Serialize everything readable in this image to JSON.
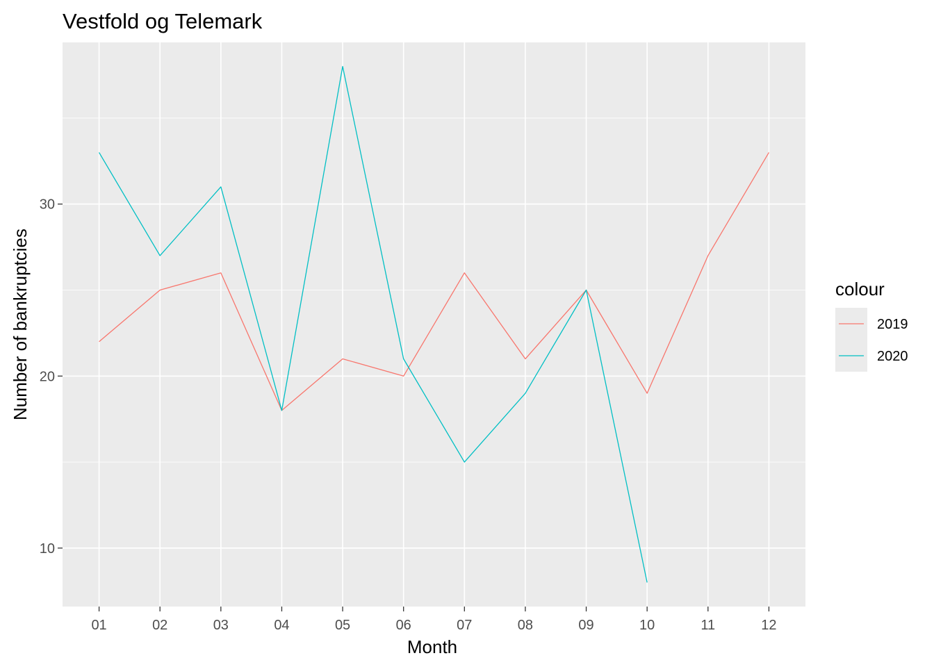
{
  "chart_data": {
    "type": "line",
    "title": "Vestfold og Telemark",
    "xlabel": "Month",
    "ylabel": "Number of bankruptcies",
    "categories": [
      "01",
      "02",
      "03",
      "04",
      "05",
      "06",
      "07",
      "08",
      "09",
      "10",
      "11",
      "12"
    ],
    "ylim": [
      6.6,
      39.4
    ],
    "yticks": [
      10,
      20,
      30
    ],
    "grid": true,
    "legend_title": "colour",
    "legend_position": "right",
    "series": [
      {
        "name": "2019",
        "color": "#F8766D",
        "values": [
          22,
          25,
          26,
          18,
          21,
          20,
          26,
          21,
          25,
          19,
          27,
          33
        ]
      },
      {
        "name": "2020",
        "color": "#00BFC4",
        "values": [
          33,
          27,
          31,
          18,
          38,
          21,
          15,
          19,
          25,
          8,
          null,
          null
        ]
      }
    ]
  }
}
